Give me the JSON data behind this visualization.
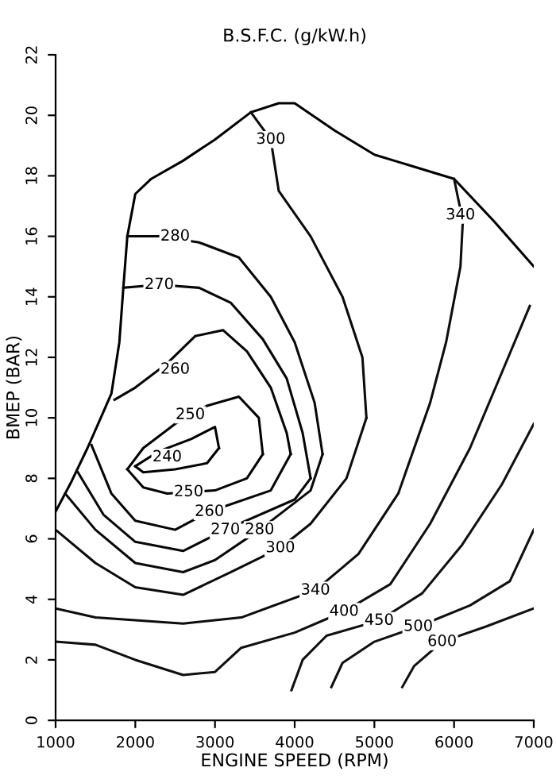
{
  "chart_data": {
    "type": "line",
    "title": "B.S.F.C. (g/kW.h)",
    "xlabel": "ENGINE SPEED (RPM)",
    "ylabel": "BMEP (BAR)",
    "xlim": [
      1000,
      7000
    ],
    "ylim": [
      0,
      22
    ],
    "xticks": [
      1000,
      2000,
      3000,
      4000,
      5000,
      6000,
      7000
    ],
    "yticks": [
      0,
      2,
      4,
      6,
      8,
      10,
      12,
      14,
      16,
      18,
      20,
      22
    ],
    "grid": false,
    "marker": "none",
    "line_style": "solid",
    "series": [
      {
        "color": "#000000",
        "x": [
          1000,
          1200,
          1400,
          1600,
          1700,
          1800,
          1850,
          1900,
          2000,
          2200,
          2600,
          3000,
          3450,
          3800,
          4000,
          4500,
          5000,
          5500,
          6000,
          6500,
          7000
        ],
        "values": [
          6.9,
          7.9,
          9.0,
          10.2,
          10.8,
          12.5,
          14.3,
          16.0,
          17.4,
          17.9,
          18.5,
          19.2,
          20.1,
          20.4,
          20.4,
          19.5,
          18.7,
          18.3,
          17.9,
          16.5,
          15.0
        ]
      },
      {
        "color": "#010101",
        "x": [
          2000,
          2300,
          2700,
          3000,
          3050
        ],
        "values": [
          8.4,
          8.9,
          9.3,
          9.7,
          9.0
        ]
      },
      {
        "color": "#020202",
        "x": [
          2000,
          2100,
          2500,
          2900,
          3050
        ],
        "values": [
          8.4,
          8.2,
          8.3,
          8.5,
          9.0
        ]
      },
      {
        "color": "#030303",
        "x": [
          1900,
          2100,
          2500,
          2900,
          3300,
          3550,
          3600
        ],
        "values": [
          8.3,
          9.0,
          9.8,
          10.4,
          10.7,
          10.0,
          8.8
        ]
      },
      {
        "color": "#040404",
        "x": [
          1900,
          2100,
          2400,
          3000,
          3400,
          3600
        ],
        "values": [
          8.3,
          7.7,
          7.5,
          7.6,
          8.0,
          8.8
        ]
      },
      {
        "color": "#050505",
        "x": [
          1740,
          2000,
          2400,
          2750,
          3100,
          3400,
          3700,
          3900,
          3950
        ],
        "values": [
          10.6,
          11.0,
          11.8,
          12.7,
          12.9,
          12.2,
          11.0,
          9.5,
          8.8
        ]
      },
      {
        "color": "#060606",
        "x": [
          1450,
          1700,
          2000,
          2500,
          2930,
          3700,
          3950
        ],
        "values": [
          9.1,
          7.5,
          6.6,
          6.3,
          6.9,
          7.6,
          8.8
        ]
      },
      {
        "color": "#070707",
        "x": [
          1850,
          2300,
          2800,
          3200,
          3600,
          3900,
          4100,
          4200
        ],
        "values": [
          14.3,
          14.4,
          14.3,
          13.8,
          12.6,
          11.3,
          9.5,
          8.0
        ]
      },
      {
        "color": "#080808",
        "x": [
          1280,
          1600,
          2000,
          2600,
          3130,
          4000,
          4200
        ],
        "values": [
          8.2,
          6.8,
          5.9,
          5.6,
          6.3,
          7.3,
          8.0
        ]
      },
      {
        "color": "#090909",
        "x": [
          1900,
          2300,
          2800,
          3300,
          3700,
          4000,
          4250,
          4350
        ],
        "values": [
          16.0,
          16.0,
          15.8,
          15.3,
          14.0,
          12.5,
          10.5,
          8.8
        ]
      },
      {
        "color": "#0a0a0a",
        "x": [
          1120,
          1500,
          2000,
          2600,
          3000,
          3560,
          4200,
          4350
        ],
        "values": [
          7.5,
          6.3,
          5.2,
          4.9,
          5.3,
          6.3,
          7.6,
          8.8
        ]
      },
      {
        "color": "#0b0b0b",
        "x": [
          3450,
          3700,
          3800,
          4200,
          4600,
          4850,
          4900
        ],
        "values": [
          20.1,
          19.2,
          17.5,
          16.0,
          14.0,
          12.0,
          10.0
        ]
      },
      {
        "color": "#0c0c0c",
        "x": [
          1000,
          1500,
          2000,
          2600,
          3200,
          3820,
          4200,
          4650,
          4900
        ],
        "values": [
          6.3,
          5.2,
          4.4,
          4.15,
          4.9,
          5.7,
          6.5,
          8.0,
          10.0
        ]
      },
      {
        "color": "#0d0d0d",
        "x": [
          1000,
          1500,
          2600,
          3330,
          4260,
          4800,
          5300,
          5700,
          5900,
          6080,
          6110
        ],
        "values": [
          3.7,
          3.4,
          3.2,
          3.4,
          4.3,
          5.5,
          7.5,
          10.5,
          12.5,
          15.0,
          16.5
        ]
      },
      {
        "color": "#0e0e0e",
        "x": [
          6000,
          6110
        ],
        "values": [
          17.9,
          16.5
        ]
      },
      {
        "color": "#0f0f0f",
        "x": [
          1000,
          1500,
          2000,
          2600,
          3000,
          3330,
          4000,
          4620,
          5200,
          5700,
          6200,
          6600,
          6950
        ],
        "values": [
          2.6,
          2.5,
          2.0,
          1.5,
          1.6,
          2.4,
          2.9,
          3.6,
          4.5,
          6.5,
          9.0,
          11.5,
          13.7
        ]
      },
      {
        "color": "#101010",
        "x": [
          3960,
          4100,
          4400,
          5060,
          5600,
          6100,
          6600,
          7000
        ],
        "values": [
          1.0,
          2.0,
          2.8,
          3.3,
          4.2,
          5.8,
          7.8,
          9.8
        ]
      },
      {
        "color": "#111111",
        "x": [
          4460,
          4600,
          5000,
          5550,
          6200,
          6700,
          7000
        ],
        "values": [
          1.1,
          1.9,
          2.6,
          3.1,
          3.8,
          4.6,
          6.3
        ]
      },
      {
        "color": "#121212",
        "x": [
          5350,
          5500,
          5850,
          6400,
          7000
        ],
        "values": [
          1.1,
          1.8,
          2.6,
          3.1,
          3.7
        ]
      }
    ],
    "annotations": [
      {
        "text": "240",
        "x": 2400,
        "y": 8.7
      },
      {
        "text": "250",
        "x": 2690,
        "y": 10.1
      },
      {
        "text": "250",
        "x": 2670,
        "y": 7.55
      },
      {
        "text": "260",
        "x": 2500,
        "y": 11.6
      },
      {
        "text": "260",
        "x": 2930,
        "y": 6.9
      },
      {
        "text": "270",
        "x": 2300,
        "y": 14.4
      },
      {
        "text": "270",
        "x": 3130,
        "y": 6.3
      },
      {
        "text": "280",
        "x": 2500,
        "y": 16.0
      },
      {
        "text": "280",
        "x": 3560,
        "y": 6.3
      },
      {
        "text": "300",
        "x": 3700,
        "y": 19.2
      },
      {
        "text": "300",
        "x": 3820,
        "y": 5.7
      },
      {
        "text": "340",
        "x": 6080,
        "y": 16.7
      },
      {
        "text": "340",
        "x": 4260,
        "y": 4.3
      },
      {
        "text": "400",
        "x": 4620,
        "y": 3.6
      },
      {
        "text": "450",
        "x": 5060,
        "y": 3.3
      },
      {
        "text": "500",
        "x": 5550,
        "y": 3.1
      },
      {
        "text": "600",
        "x": 5850,
        "y": 2.6
      }
    ]
  }
}
